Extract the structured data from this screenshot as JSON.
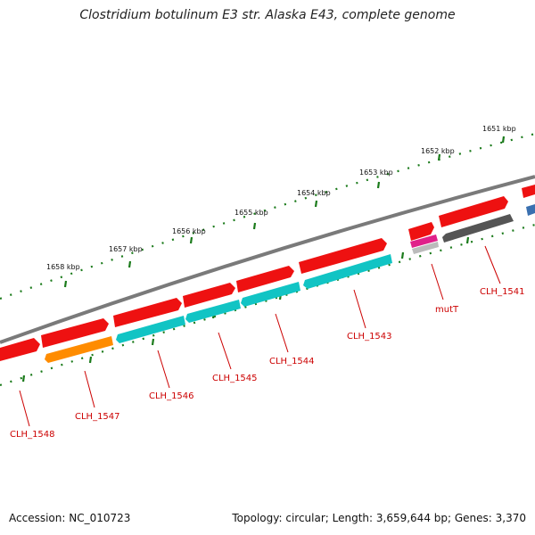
{
  "title": "Clostridium botulinum E3 str. Alaska E43, complete genome",
  "footer": {
    "accession": "Accession: NC_010723",
    "summary": "Topology: circular; Length: 3,659,644 bp; Genes: 3,370"
  },
  "colors": {
    "backbone": "#7a7a7a",
    "tick": "#1a7a1a",
    "label": "#cc0000",
    "red_gene": "#ee1111",
    "cyan_gene": "#11c4c4",
    "orange_gene": "#ff8c00",
    "gray_gene": "#555555",
    "magenta_gene": "#e0208a",
    "blue_gene": "#3a70b0"
  },
  "scale_labels": [
    "1651 kbp",
    "1652 kbp",
    "1653 kbp",
    "1654 kbp",
    "1655 kbp",
    "1656 kbp",
    "1657 kbp",
    "1658 kbp"
  ],
  "gene_labels": [
    "CLH_1541",
    "mutT",
    "CLH_1543",
    "CLH_1544",
    "CLH_1545",
    "CLH_1546",
    "CLH_1547",
    "CLH_1548"
  ]
}
